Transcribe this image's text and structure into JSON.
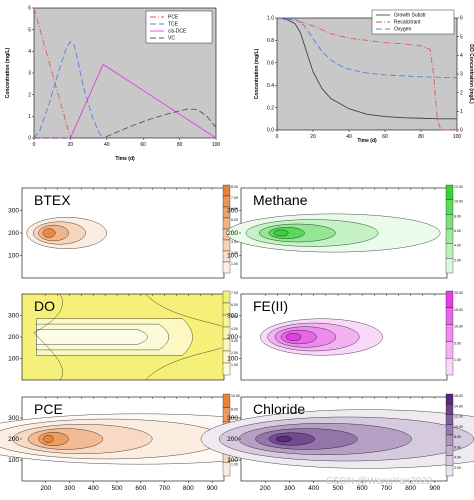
{
  "chart_data": [
    {
      "type": "line",
      "xlabel": "Time (d)",
      "ylabel": "Concentration (mg/L)",
      "xlim": [
        0,
        100
      ],
      "ylim": [
        0,
        6
      ],
      "xticks": [
        "0",
        "20",
        "40",
        "60",
        "80",
        "100"
      ],
      "yticks": [
        "0",
        "1",
        "2",
        "3",
        "4",
        "5",
        "6"
      ],
      "legend_position": "top-right",
      "series": [
        {
          "name": "PCE",
          "color": "#e05a5a",
          "dash": "6,2,1,2",
          "x": [
            0,
            20
          ],
          "y": [
            6,
            0
          ]
        },
        {
          "name": "TCE",
          "color": "#5a7fe0",
          "dash": "6,3",
          "x": [
            0,
            3,
            8,
            14,
            18,
            20,
            22,
            24,
            27,
            32,
            36,
            38
          ],
          "y": [
            0,
            0.3,
            1.5,
            3.2,
            4.2,
            4.45,
            4.3,
            3.6,
            2.4,
            1.0,
            0.2,
            0
          ]
        },
        {
          "name": "cis-DCE",
          "color": "#e040e0",
          "dash": "",
          "x": [
            0,
            20,
            38,
            100
          ],
          "y": [
            0,
            0,
            3.4,
            0
          ]
        },
        {
          "name": "VC",
          "color": "#555555",
          "dash": "6,3",
          "x": [
            0,
            38,
            45,
            55,
            65,
            75,
            85,
            90,
            95,
            100
          ],
          "y": [
            0,
            0,
            0.25,
            0.6,
            0.9,
            1.15,
            1.35,
            1.3,
            1.0,
            0.5
          ]
        }
      ]
    },
    {
      "type": "line",
      "xlabel": "Time (d)",
      "ylabel": "Concentration (mg/L)",
      "y2label": "DO Concentration (mg/L)",
      "xlim": [
        0,
        100
      ],
      "ylim": [
        0,
        1
      ],
      "y2lim": [
        0,
        6
      ],
      "xticks": [
        "0",
        "20",
        "40",
        "60",
        "80",
        "100"
      ],
      "yticks": [
        "0.0",
        "0.2",
        "0.4",
        "0.6",
        "0.8",
        "1.0"
      ],
      "y2ticks": [
        "0",
        "1",
        "2",
        "3",
        "4",
        "5",
        "6"
      ],
      "legend_position": "top-right",
      "series": [
        {
          "name": "Growth Substr",
          "color": "#444444",
          "dash": "",
          "axis": "left",
          "x": [
            0,
            5,
            10,
            13,
            16,
            20,
            25,
            30,
            40,
            50,
            60,
            70,
            80,
            90,
            100
          ],
          "y": [
            1,
            0.99,
            0.95,
            0.87,
            0.72,
            0.52,
            0.37,
            0.28,
            0.19,
            0.14,
            0.12,
            0.11,
            0.105,
            0.1,
            0.1
          ]
        },
        {
          "name": "Recalcitrant",
          "color": "#e05a5a",
          "dash": "6,2,1,2",
          "axis": "left",
          "x": [
            0,
            10,
            20,
            30,
            40,
            50,
            60,
            70,
            80,
            85,
            87,
            89,
            91,
            100
          ],
          "y": [
            1,
            0.98,
            0.93,
            0.86,
            0.82,
            0.8,
            0.78,
            0.77,
            0.75,
            0.72,
            0.5,
            0.1,
            0,
            0
          ]
        },
        {
          "name": "Oxygen",
          "color": "#5a7fe0",
          "dash": "6,3",
          "axis": "right",
          "x": [
            0,
            10,
            15,
            20,
            25,
            30,
            35,
            40,
            50,
            60,
            70,
            80,
            90,
            100
          ],
          "y": [
            6,
            5.95,
            5.6,
            4.9,
            4.2,
            3.75,
            3.45,
            3.25,
            3.05,
            2.95,
            2.9,
            2.85,
            2.82,
            2.8
          ]
        }
      ]
    },
    {
      "type": "heatmap",
      "title": "BTEX",
      "xticks": [
        "200",
        "300",
        "400",
        "500",
        "600",
        "700",
        "800",
        "900"
      ],
      "yticks": [
        "100",
        "200",
        "300"
      ],
      "colorbar": [
        "8.00",
        "7.00",
        "6.00",
        "5.00",
        "4.00",
        "3.00",
        "2.00",
        "1.00"
      ],
      "color": "#e8843a",
      "source": [
        200,
        200
      ]
    },
    {
      "type": "heatmap",
      "title": "Methane",
      "xticks": [
        "200",
        "300",
        "400",
        "500",
        "600",
        "700",
        "800",
        "900"
      ],
      "yticks": [
        "100",
        "200",
        "300"
      ],
      "colorbar": [
        "12.00",
        "10.00",
        "8.00",
        "6.00",
        "4.00",
        "2.00"
      ],
      "color": "#3ad23a",
      "source": [
        250,
        200
      ]
    },
    {
      "type": "heatmap",
      "title": "DO",
      "xticks": [
        "200",
        "300",
        "400",
        "500",
        "600",
        "700",
        "800",
        "900"
      ],
      "yticks": [
        "100",
        "200",
        "300"
      ],
      "colorbar": [
        "7.00",
        "6.00",
        "5.00",
        "4.00",
        "3.00",
        "2.00",
        "1.00"
      ],
      "color": "#f5f07a",
      "source": [
        200,
        200
      ]
    },
    {
      "type": "heatmap",
      "title": "FE(II)",
      "xticks": [
        "200",
        "300",
        "400",
        "500",
        "600",
        "700",
        "800",
        "900"
      ],
      "yticks": [
        "100",
        "200",
        "300"
      ],
      "colorbar": [
        "20.00",
        "15.00",
        "10.00",
        "5.00",
        "1.00"
      ],
      "color": "#e040e0",
      "source": [
        300,
        200
      ]
    },
    {
      "type": "heatmap",
      "title": "PCE",
      "xticks": [
        "200",
        "300",
        "400",
        "500",
        "600",
        "700",
        "800",
        "900"
      ],
      "yticks": [
        "100",
        "200",
        "300"
      ],
      "colorbar": [
        "10.00",
        "8.00",
        "6.00",
        "4.00",
        "2.00",
        "1.00"
      ],
      "color": "#e8843a",
      "source": [
        200,
        200
      ]
    },
    {
      "type": "heatmap",
      "title": "Chloride",
      "xticks": [
        "200",
        "300",
        "400",
        "500",
        "600",
        "700",
        "800",
        "900"
      ],
      "yticks": [
        "100",
        "200",
        "300"
      ],
      "colorbar": [
        "16.00",
        "14.00",
        "12.00",
        "10.00",
        "8.00",
        "6.00",
        "4.00",
        "2.00"
      ],
      "color": "#5a2a7a",
      "source": [
        260,
        200
      ]
    }
  ],
  "watermark": "CSDN @WangYan2022"
}
